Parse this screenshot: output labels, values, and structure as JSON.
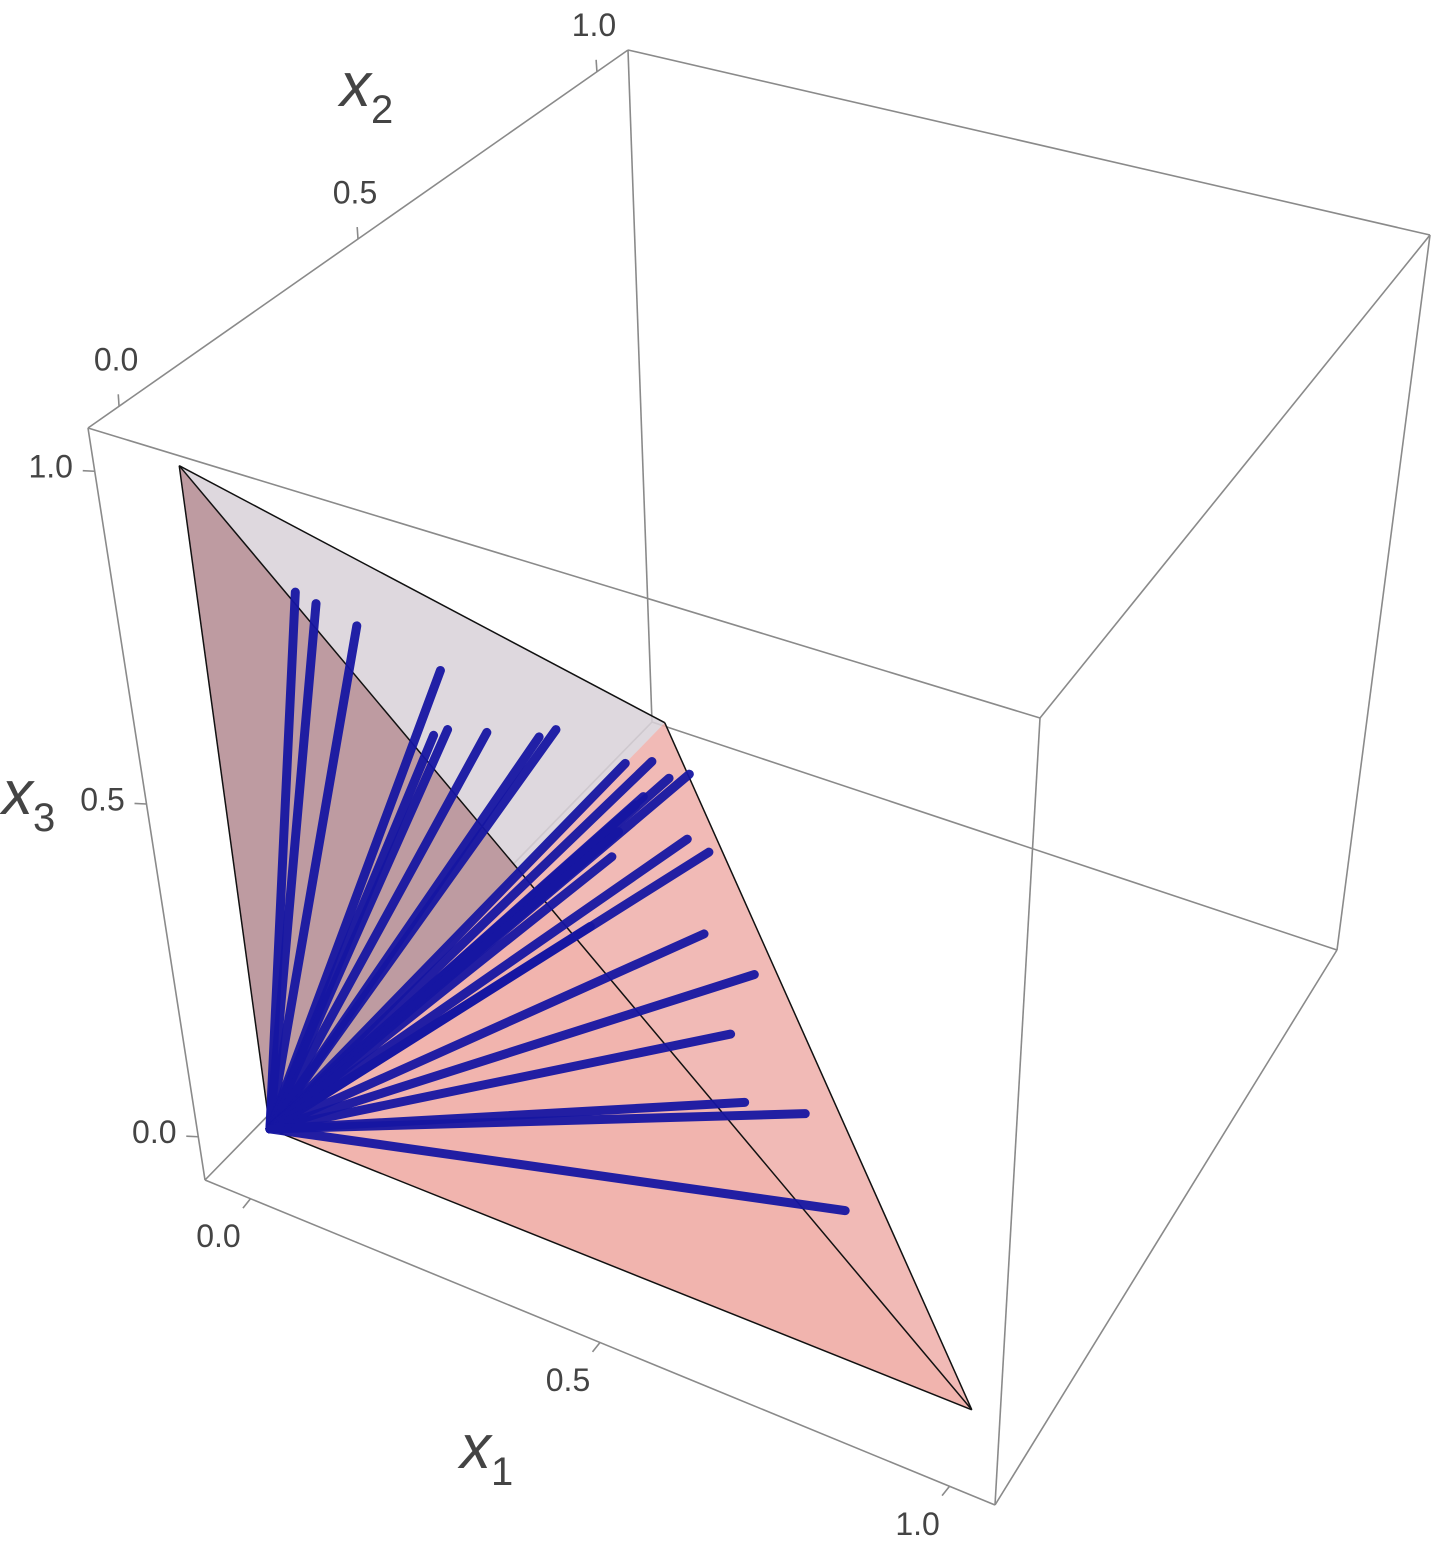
{
  "chart_data": {
    "type": "rays3d",
    "xlabel": {
      "symbol": "x",
      "subscript": "1"
    },
    "ylabel": {
      "symbol": "x",
      "subscript": "2"
    },
    "zlabel": {
      "symbol": "x",
      "subscript": "3"
    },
    "xlim": [
      -0.065,
      1.065
    ],
    "ylim": [
      -0.065,
      1.065
    ],
    "zlim": [
      -0.065,
      1.065
    ],
    "xticks": [
      {
        "value": 0,
        "label": "0.0"
      },
      {
        "value": 0.5,
        "label": "0.5"
      },
      {
        "value": 1,
        "label": "1.0"
      }
    ],
    "yticks": [
      {
        "value": 0,
        "label": "0.0"
      },
      {
        "value": 0.5,
        "label": "0.5"
      },
      {
        "value": 1,
        "label": "1.0"
      }
    ],
    "zticks": [
      {
        "value": 0,
        "label": "0.0"
      },
      {
        "value": 0.5,
        "label": "0.5"
      },
      {
        "value": 1,
        "label": "1.0"
      }
    ],
    "simplex": [
      [
        0,
        0,
        0
      ],
      [
        1,
        0,
        0
      ],
      [
        0,
        1,
        0
      ],
      [
        0,
        0,
        1
      ]
    ],
    "color": "#1616a2",
    "rays": [
      [
        0.0,
        0.2,
        0.7
      ],
      [
        0.0,
        0.24,
        0.66
      ],
      [
        0.0,
        0.32,
        0.58
      ],
      [
        0.0,
        0.49,
        0.41
      ],
      [
        0.0,
        0.74,
        0.16
      ],
      [
        0.15,
        0.23,
        0.52
      ],
      [
        0.12,
        0.31,
        0.47
      ],
      [
        0.08,
        0.46,
        0.36
      ],
      [
        0.02,
        0.67,
        0.2
      ],
      [
        0.0,
        0.9,
        0.0
      ],
      [
        0.03,
        0.92,
        0.0
      ],
      [
        0.06,
        0.85,
        0.0
      ],
      [
        0.07,
        0.9,
        0.0
      ],
      [
        0.09,
        0.92,
        0.0
      ],
      [
        0.06,
        0.83,
        0.0
      ],
      [
        0.07,
        0.77,
        0.0
      ],
      [
        0.16,
        0.8,
        0.0
      ],
      [
        0.2,
        0.79,
        0.0
      ],
      [
        0.09,
        0.72,
        0.0
      ],
      [
        0.14,
        0.58,
        0.0
      ],
      [
        0.28,
        0.64,
        0.0
      ],
      [
        0.38,
        0.6,
        0.0
      ],
      [
        0.41,
        0.48,
        0.0
      ],
      [
        0.49,
        0.37,
        0.0
      ],
      [
        0.57,
        0.39,
        0.0
      ],
      [
        0.7,
        0.25,
        0.0
      ]
    ]
  }
}
